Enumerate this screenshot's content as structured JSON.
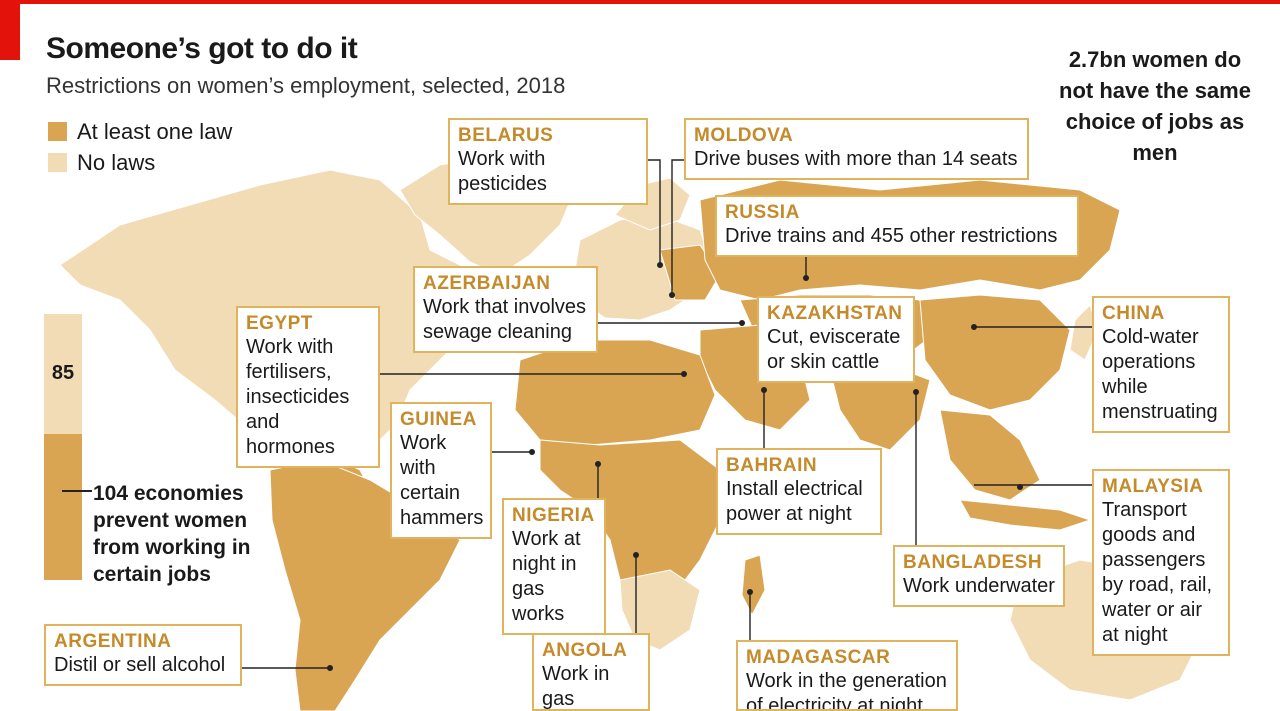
{
  "header": {
    "title": "Someone’s got to do it",
    "subtitle": "Restrictions on women’s employment, selected, 2018"
  },
  "legend": {
    "items": [
      {
        "label": "At least one law",
        "color": "#d9a552"
      },
      {
        "label": "No laws",
        "color": "#f2dcb6"
      }
    ]
  },
  "stat_note": "2.7bn women do not have the same choice of jobs as men",
  "bar": {
    "no_laws_count": "85",
    "laws_note": "104 economies prevent women from working in certain jobs",
    "no_laws": 85,
    "laws": 104
  },
  "colors": {
    "accent": "#e3120b",
    "law": "#d9a552",
    "no_law": "#f2dcb6",
    "label": "#c58a2a"
  },
  "callouts": [
    {
      "id": "belarus",
      "country": "BELARUS",
      "text": "Work with pesticides"
    },
    {
      "id": "moldova",
      "country": "MOLDOVA",
      "text": "Drive buses with more than 14 seats"
    },
    {
      "id": "russia",
      "country": "RUSSIA",
      "text": "Drive trains and 455 other restrictions"
    },
    {
      "id": "azerbaijan",
      "country": "AZERBAIJAN",
      "text": "Work that involves sewage cleaning"
    },
    {
      "id": "egypt",
      "country": "EGYPT",
      "text": "Work with fertilisers, insecticides and hormones"
    },
    {
      "id": "kazakhstan",
      "country": "KAZAKHSTAN",
      "text": "Cut, eviscerate or skin cattle"
    },
    {
      "id": "china",
      "country": "CHINA",
      "text": "Cold-water operations while menstruating"
    },
    {
      "id": "guinea",
      "country": "GUINEA",
      "text": "Work with certain hammers"
    },
    {
      "id": "bahrain",
      "country": "BAHRAIN",
      "text": "Install electrical power at night"
    },
    {
      "id": "malaysia",
      "country": "MALAYSIA",
      "text": "Transport goods and passengers by road, rail, water or air at night"
    },
    {
      "id": "nigeria",
      "country": "NIGERIA",
      "text": "Work at night in gas works"
    },
    {
      "id": "bangladesh",
      "country": "BANGLADESH",
      "text": "Work underwater"
    },
    {
      "id": "argentina",
      "country": "ARGENTINA",
      "text": "Distil or sell alcohol"
    },
    {
      "id": "angola",
      "country": "ANGOLA",
      "text": "Work in gas production"
    },
    {
      "id": "madagascar",
      "country": "MADAGASCAR",
      "text": "Work in the generation of electricity at night"
    }
  ]
}
